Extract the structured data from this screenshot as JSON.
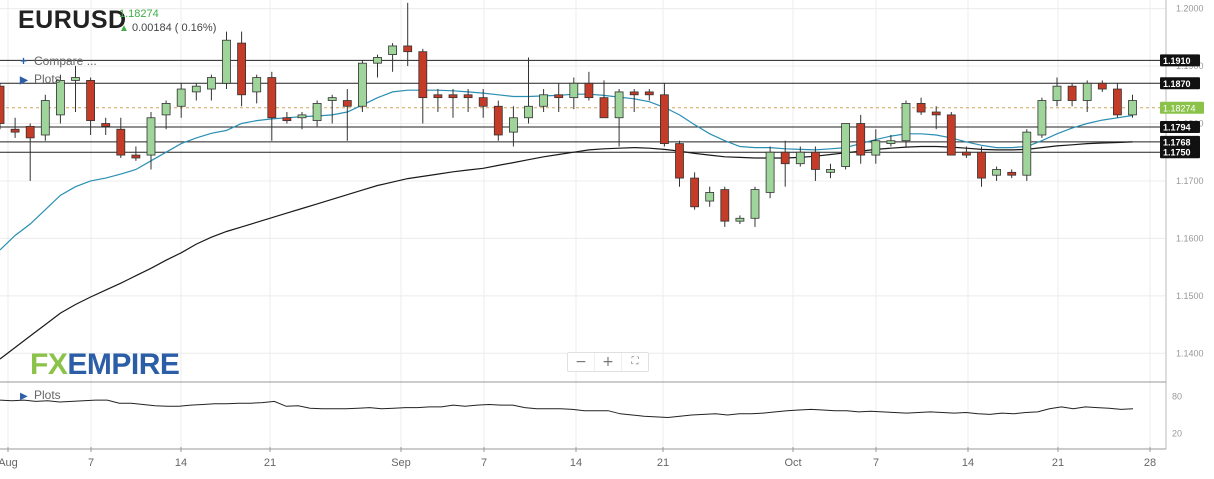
{
  "header": {
    "symbol": "EURUSD",
    "price": "1.18274",
    "change": "0.00184 ( 0.16%)",
    "compare_label": "Compare ...",
    "plots_label": "Plots",
    "plots2_label": "Plots"
  },
  "logo": {
    "fx": "FX",
    "empire": "EMPIRE"
  },
  "zoom": {
    "minus": "−",
    "plus": "+",
    "fit": "⛶"
  },
  "colors": {
    "up": "#9fd49a",
    "down": "#c43b27",
    "ma_fast": "#2a8fb2",
    "ma_slow": "#1a1a1a",
    "price_line": "#8bc34a",
    "level": "#222222"
  },
  "chart_data": [
    {
      "type": "candlestick",
      "title": "EURUSD",
      "ylim": [
        1.135,
        1.2015
      ],
      "y_ticks": [
        "1.2000",
        "1.1900",
        "1.1800",
        "1.1700",
        "1.1600",
        "1.1500",
        "1.1400"
      ],
      "x_ticks": [
        "Aug",
        "7",
        "14",
        "21",
        "Sep",
        "7",
        "14",
        "21",
        "Oct",
        "7",
        "14",
        "21",
        "28"
      ],
      "last_price_label": "1.18274",
      "levels": [
        {
          "value": 1.191,
          "label": "1.1910"
        },
        {
          "value": 1.187,
          "label": "1.1870"
        },
        {
          "value": 1.1794,
          "label": "1.1794"
        },
        {
          "value": 1.1768,
          "label": "1.1768"
        },
        {
          "value": 1.175,
          "label": "1.1750"
        }
      ],
      "candles": [
        [
          1.1865,
          1.187,
          1.179,
          1.18
        ],
        [
          1.179,
          1.181,
          1.1775,
          1.1785
        ],
        [
          1.1795,
          1.18,
          1.17,
          1.1775
        ],
        [
          1.178,
          1.185,
          1.177,
          1.184
        ],
        [
          1.1815,
          1.1885,
          1.18,
          1.1875
        ],
        [
          1.1875,
          1.19,
          1.182,
          1.188
        ],
        [
          1.1875,
          1.188,
          1.178,
          1.1805
        ],
        [
          1.18,
          1.181,
          1.178,
          1.1795
        ],
        [
          1.179,
          1.181,
          1.174,
          1.1745
        ],
        [
          1.1745,
          1.176,
          1.1735,
          1.174
        ],
        [
          1.1745,
          1.182,
          1.172,
          1.181
        ],
        [
          1.1815,
          1.184,
          1.179,
          1.1835
        ],
        [
          1.183,
          1.187,
          1.181,
          1.186
        ],
        [
          1.1855,
          1.187,
          1.184,
          1.1865
        ],
        [
          1.186,
          1.1885,
          1.184,
          1.188
        ],
        [
          1.187,
          1.196,
          1.186,
          1.1945
        ],
        [
          1.194,
          1.196,
          1.183,
          1.185
        ],
        [
          1.1855,
          1.1885,
          1.1835,
          1.188
        ],
        [
          1.188,
          1.189,
          1.177,
          1.181
        ],
        [
          1.181,
          1.182,
          1.18,
          1.1805
        ],
        [
          1.181,
          1.182,
          1.179,
          1.1815
        ],
        [
          1.1805,
          1.184,
          1.1795,
          1.1835
        ],
        [
          1.184,
          1.185,
          1.18,
          1.1845
        ],
        [
          1.184,
          1.186,
          1.177,
          1.183
        ],
        [
          1.183,
          1.191,
          1.182,
          1.1905
        ],
        [
          1.1905,
          1.192,
          1.188,
          1.1915
        ],
        [
          1.192,
          1.194,
          1.189,
          1.1935
        ],
        [
          1.1935,
          1.201,
          1.19,
          1.1925
        ],
        [
          1.1925,
          1.193,
          1.18,
          1.1845
        ],
        [
          1.185,
          1.186,
          1.182,
          1.1845
        ],
        [
          1.185,
          1.186,
          1.181,
          1.1845
        ],
        [
          1.185,
          1.186,
          1.182,
          1.1845
        ],
        [
          1.1845,
          1.186,
          1.181,
          1.183
        ],
        [
          1.183,
          1.184,
          1.177,
          1.178
        ],
        [
          1.1785,
          1.183,
          1.176,
          1.181
        ],
        [
          1.181,
          1.1915,
          1.18,
          1.183
        ],
        [
          1.183,
          1.186,
          1.182,
          1.185
        ],
        [
          1.185,
          1.187,
          1.182,
          1.1845
        ],
        [
          1.1845,
          1.188,
          1.1825,
          1.187
        ],
        [
          1.187,
          1.189,
          1.184,
          1.1845
        ],
        [
          1.1845,
          1.1875,
          1.181,
          1.181
        ],
        [
          1.181,
          1.186,
          1.176,
          1.1855
        ],
        [
          1.1855,
          1.186,
          1.182,
          1.185
        ],
        [
          1.1855,
          1.186,
          1.184,
          1.185
        ],
        [
          1.185,
          1.187,
          1.176,
          1.1765
        ],
        [
          1.1765,
          1.177,
          1.169,
          1.1705
        ],
        [
          1.1705,
          1.1715,
          1.165,
          1.1655
        ],
        [
          1.1665,
          1.169,
          1.1655,
          1.168
        ],
        [
          1.1685,
          1.169,
          1.162,
          1.163
        ],
        [
          1.163,
          1.164,
          1.1625,
          1.1635
        ],
        [
          1.1635,
          1.169,
          1.162,
          1.1685
        ],
        [
          1.168,
          1.176,
          1.167,
          1.175
        ],
        [
          1.175,
          1.177,
          1.169,
          1.173
        ],
        [
          1.173,
          1.176,
          1.1725,
          1.175
        ],
        [
          1.175,
          1.176,
          1.17,
          1.172
        ],
        [
          1.1715,
          1.173,
          1.1705,
          1.172
        ],
        [
          1.1725,
          1.18,
          1.172,
          1.18
        ],
        [
          1.18,
          1.1815,
          1.173,
          1.1745
        ],
        [
          1.1745,
          1.179,
          1.173,
          1.177
        ],
        [
          1.1765,
          1.178,
          1.176,
          1.177
        ],
        [
          1.177,
          1.184,
          1.176,
          1.1835
        ],
        [
          1.1835,
          1.1845,
          1.1815,
          1.182
        ],
        [
          1.182,
          1.183,
          1.179,
          1.1815
        ],
        [
          1.1815,
          1.182,
          1.175,
          1.1745
        ],
        [
          1.175,
          1.176,
          1.174,
          1.1745
        ],
        [
          1.175,
          1.176,
          1.169,
          1.1705
        ],
        [
          1.171,
          1.1725,
          1.17,
          1.172
        ],
        [
          1.1715,
          1.172,
          1.1705,
          1.171
        ],
        [
          1.171,
          1.179,
          1.17,
          1.1785
        ],
        [
          1.178,
          1.1845,
          1.1775,
          1.184
        ],
        [
          1.184,
          1.188,
          1.183,
          1.1865
        ],
        [
          1.1865,
          1.187,
          1.183,
          1.184
        ],
        [
          1.184,
          1.1875,
          1.182,
          1.187
        ],
        [
          1.187,
          1.1875,
          1.1855,
          1.186
        ],
        [
          1.186,
          1.187,
          1.181,
          1.1815
        ],
        [
          1.1815,
          1.185,
          1.181,
          1.184
        ]
      ],
      "series": [
        {
          "role": "fast moving average",
          "values": [
            1.158,
            1.1605,
            1.1625,
            1.165,
            1.1675,
            1.169,
            1.17,
            1.1705,
            1.1712,
            1.172,
            1.1735,
            1.175,
            1.1765,
            1.1775,
            1.1783,
            1.1788,
            1.18,
            1.1805,
            1.1808,
            1.181,
            1.1812,
            1.1813,
            1.1815,
            1.182,
            1.1832,
            1.1845,
            1.1855,
            1.1858,
            1.1858,
            1.1858,
            1.1857,
            1.1855,
            1.1853,
            1.185,
            1.1847,
            1.1847,
            1.1848,
            1.1849,
            1.1851,
            1.1851,
            1.1849,
            1.1846,
            1.1843,
            1.1838,
            1.1828,
            1.1815,
            1.1798,
            1.1782,
            1.177,
            1.176,
            1.1758,
            1.1758,
            1.1756,
            1.1755,
            1.1754,
            1.1756,
            1.1758,
            1.1765,
            1.1772,
            1.1778,
            1.1782,
            1.1782,
            1.178,
            1.1775,
            1.1768,
            1.1762,
            1.1758,
            1.1758,
            1.176,
            1.177,
            1.1782,
            1.1792,
            1.18,
            1.1806,
            1.181,
            1.1814
          ]
        },
        {
          "role": "slow moving average",
          "values": [
            1.139,
            1.141,
            1.143,
            1.145,
            1.147,
            1.1485,
            1.1498,
            1.151,
            1.1522,
            1.1535,
            1.1548,
            1.1562,
            1.1575,
            1.159,
            1.1602,
            1.1612,
            1.162,
            1.1628,
            1.1636,
            1.1644,
            1.1652,
            1.166,
            1.1668,
            1.1676,
            1.1684,
            1.1692,
            1.1698,
            1.1704,
            1.1708,
            1.1712,
            1.1716,
            1.1719,
            1.1722,
            1.1727,
            1.1732,
            1.1737,
            1.1742,
            1.1746,
            1.175,
            1.1754,
            1.1756,
            1.1757,
            1.1758,
            1.1757,
            1.1755,
            1.1752,
            1.1748,
            1.1745,
            1.1742,
            1.1741,
            1.174,
            1.174,
            1.174,
            1.1741,
            1.1743,
            1.1746,
            1.1749,
            1.1752,
            1.1755,
            1.1757,
            1.1759,
            1.176,
            1.176,
            1.1759,
            1.1757,
            1.1755,
            1.1754,
            1.1754,
            1.1755,
            1.1758,
            1.1761,
            1.1763,
            1.1765,
            1.1766,
            1.1767,
            1.1768
          ]
        }
      ]
    },
    {
      "type": "line",
      "title": "",
      "ylim": [
        0,
        100
      ],
      "y_ticks": [
        "80",
        "20"
      ],
      "values": [
        74,
        73,
        74,
        72,
        73,
        71,
        72,
        73,
        74,
        74,
        69,
        69,
        67,
        65,
        64,
        64,
        66,
        67,
        68,
        68,
        69,
        69,
        70,
        72,
        64,
        65,
        61,
        60,
        60,
        60,
        61,
        62,
        60,
        61,
        62,
        62,
        63,
        63,
        66,
        64,
        66,
        67,
        66,
        66,
        62,
        60,
        60,
        60,
        59,
        57,
        57,
        57,
        52,
        50,
        48,
        47,
        46,
        48,
        50,
        51,
        52,
        50,
        52,
        52,
        53,
        55,
        57,
        58,
        59,
        58,
        57,
        57,
        55,
        56,
        55,
        54,
        53,
        54,
        55,
        54,
        53,
        54,
        52,
        51,
        53,
        52,
        54,
        55,
        60,
        63,
        60,
        63,
        62,
        61,
        59,
        60
      ]
    }
  ]
}
